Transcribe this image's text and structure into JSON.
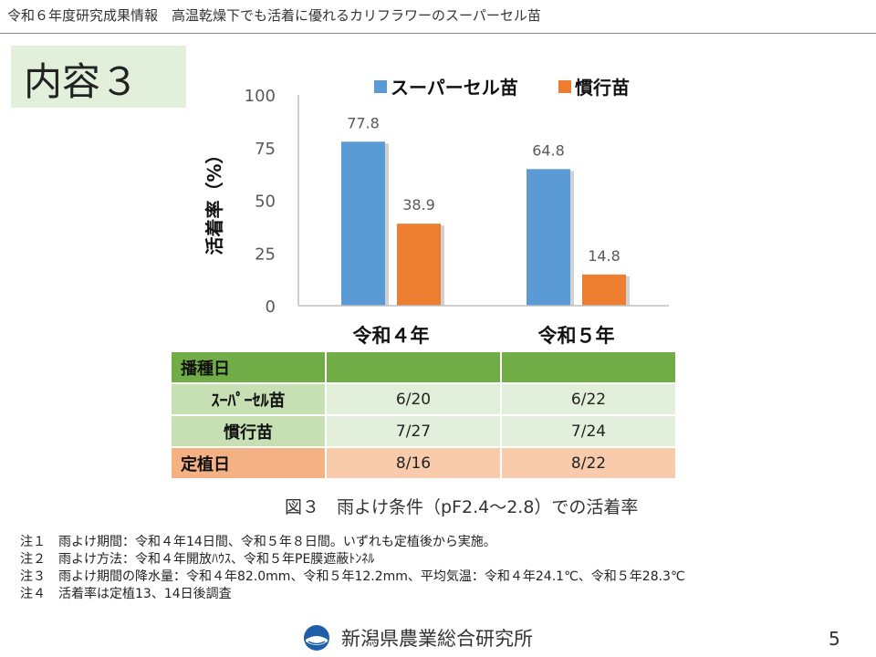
{
  "header": {
    "title": "令和６年度研究成果情報　高温乾燥下でも活着に優れるカリフラワーのスーパーセル苗"
  },
  "section": {
    "label": "内容３"
  },
  "chart_data": {
    "type": "bar",
    "categories": [
      "令和４年",
      "令和５年"
    ],
    "series": [
      {
        "name": "スーパーセル苗",
        "values": [
          77.8,
          64.8
        ],
        "color": "#5b9bd5"
      },
      {
        "name": "慣行苗",
        "values": [
          38.9,
          14.8
        ],
        "color": "#ed7d31"
      }
    ],
    "data_labels": [
      "77.8",
      "64.8",
      "38.9",
      "14.8"
    ],
    "ylabel": "活着率（%）",
    "ylim": [
      0,
      100
    ],
    "yticks": [
      0,
      25,
      50,
      75,
      100
    ],
    "legend_position": "top",
    "grid": false
  },
  "table": {
    "rows": [
      {
        "label": "播種日",
        "v1": "",
        "v2": ""
      },
      {
        "label": "ｽｰﾊﾟｰｾﾙ苗",
        "v1": "6/20",
        "v2": "6/22"
      },
      {
        "label": "慣行苗",
        "v1": "7/27",
        "v2": "7/24"
      },
      {
        "label": "定植日",
        "v1": "8/16",
        "v2": "8/22"
      }
    ]
  },
  "caption": "図３　雨よけ条件（pF2.4～2.8）での活着率",
  "notes": [
    "注１　雨よけ期間：令和４年14日間、令和５年８日間。いずれも定植後から実施。",
    "注２　雨よけ方法：令和４年開放ﾊｳｽ、令和５年PE膜遮蔽ﾄﾝﾈﾙ",
    "注３　雨よけ期間の降水量：令和４年82.0mm、令和５年12.2mm、平均気温：令和４年24.1℃、令和５年28.3℃",
    "注４　活着率は定植13、14日後調査"
  ],
  "footer": {
    "org": "新潟県農業総合研究所",
    "logo_icon": "institute-logo-icon",
    "page": "5"
  }
}
